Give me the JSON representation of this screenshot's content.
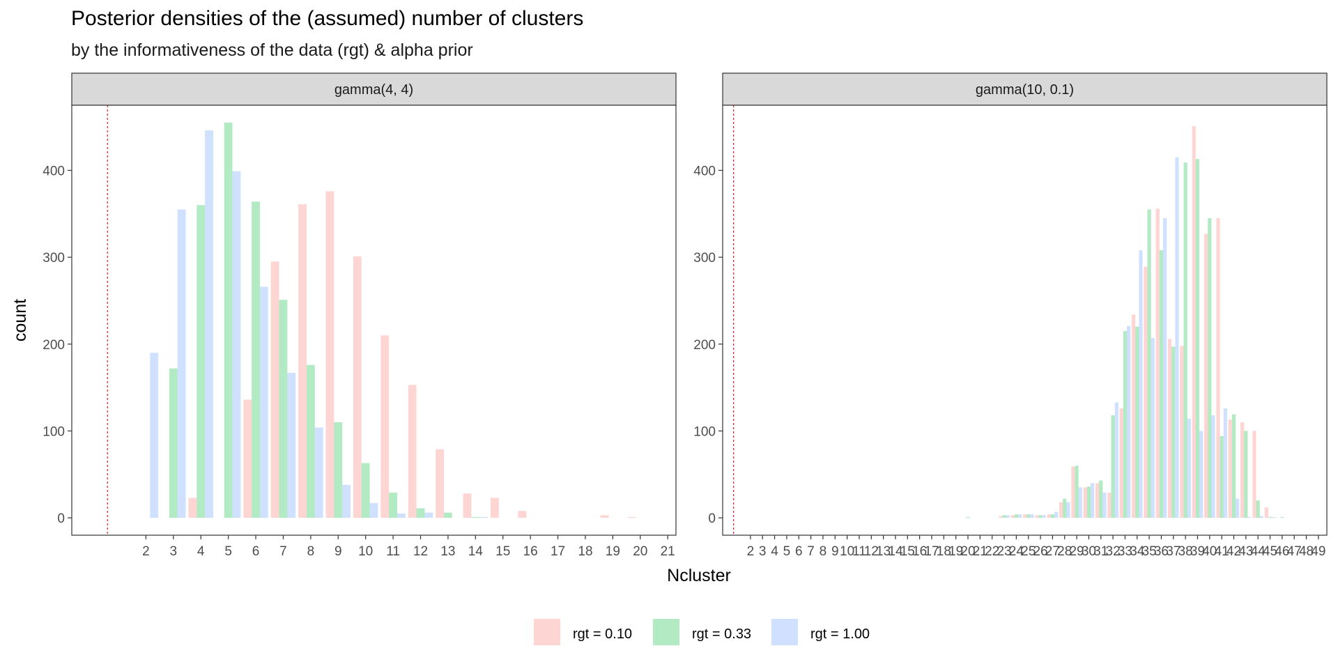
{
  "title": "Posterior densities of the (assumed) number of clusters",
  "subtitle": "by the informativeness of the data (rgt) & alpha prior",
  "colors": {
    "rgt = 0.10": "#f8766d",
    "rgt = 0.33": "#00ba38",
    "rgt = 1.00": "#619cff",
    "vline": "#e41a1c",
    "strip_bg": "#d9d9d9"
  },
  "chart_data": {
    "type": "bar",
    "xlabel": "Ncluster",
    "ylabel": "count",
    "ylim": [
      -20,
      475
    ],
    "yticks": [
      0,
      100,
      200,
      300,
      400
    ],
    "legend": {
      "position": "bottom",
      "entries": [
        "rgt = 0.10",
        "rgt = 0.33",
        "rgt = 1.00"
      ]
    },
    "vline_x": 0.6,
    "panels": [
      {
        "strip": "gamma(4, 4)",
        "xlim": [
          -0.7,
          21.3
        ],
        "xticks": [
          2,
          3,
          4,
          5,
          6,
          7,
          8,
          9,
          10,
          11,
          12,
          13,
          14,
          15,
          16,
          17,
          18,
          19,
          20,
          21
        ],
        "series": [
          {
            "name": "rgt = 0.10",
            "x": [
              4,
              6,
              7,
              8,
              9,
              10,
              11,
              12,
              13,
              14,
              15,
              16,
              19,
              20
            ],
            "values": [
              23,
              136,
              295,
              361,
              376,
              301,
              210,
              153,
              79,
              28,
              23,
              8,
              3,
              1
            ]
          },
          {
            "name": "rgt = 0.33",
            "x": [
              3,
              4,
              5,
              6,
              7,
              8,
              9,
              10,
              11,
              12,
              13,
              14
            ],
            "values": [
              172,
              360,
              455,
              364,
              251,
              176,
              110,
              63,
              29,
              11,
              6,
              1
            ]
          },
          {
            "name": "rgt = 1.00",
            "x": [
              2,
              3,
              4,
              5,
              6,
              7,
              8,
              9,
              10,
              11,
              12,
              14
            ],
            "values": [
              190,
              355,
              446,
              399,
              266,
              167,
              104,
              38,
              17,
              5,
              6,
              1
            ]
          }
        ]
      },
      {
        "strip": "gamma(10, 0.1)",
        "xlim": [
          -0.3,
          49.7
        ],
        "xticks": [
          2,
          3,
          4,
          5,
          6,
          7,
          8,
          9,
          10,
          11,
          12,
          13,
          14,
          15,
          16,
          17,
          18,
          19,
          20,
          21,
          22,
          23,
          24,
          25,
          26,
          27,
          28,
          29,
          30,
          31,
          32,
          33,
          34,
          35,
          36,
          37,
          38,
          39,
          40,
          41,
          42,
          43,
          44,
          45,
          46,
          47,
          48,
          49
        ],
        "series": [
          {
            "name": "rgt = 0.10",
            "x": [
              23,
              24,
              25,
              26,
              27,
              28,
              29,
              30,
              31,
              32,
              33,
              34,
              35,
              36,
              37,
              38,
              39,
              40,
              41,
              42,
              43,
              44,
              45
            ],
            "values": [
              2,
              3,
              4,
              3,
              4,
              18,
              59,
              35,
              40,
              29,
              126,
              234,
              289,
              356,
              206,
              198,
              451,
              327,
              345,
              113,
              110,
              100,
              12
            ]
          },
          {
            "name": "rgt = 0.33",
            "x": [
              20,
              23,
              24,
              25,
              26,
              27,
              28,
              29,
              30,
              31,
              32,
              33,
              34,
              35,
              36,
              37,
              38,
              39,
              40,
              41,
              42,
              43,
              44,
              45,
              46
            ],
            "values": [
              1,
              3,
              4,
              4,
              3,
              4,
              22,
              60,
              36,
              43,
              118,
              215,
              220,
              355,
              308,
              197,
              409,
              413,
              345,
              94,
              119,
              100,
              20,
              1,
              1
            ]
          },
          {
            "name": "rgt = 1.00",
            "x": [
              23,
              24,
              25,
              26,
              27,
              28,
              29,
              30,
              31,
              32,
              33,
              34,
              35,
              36,
              37,
              38,
              39,
              40,
              41,
              42,
              43,
              44,
              45
            ],
            "values": [
              3,
              4,
              4,
              3,
              7,
              18,
              35,
              40,
              29,
              133,
              221,
              308,
              207,
              345,
              415,
              114,
              100,
              118,
              126,
              22,
              1,
              2,
              1
            ]
          }
        ]
      }
    ]
  }
}
